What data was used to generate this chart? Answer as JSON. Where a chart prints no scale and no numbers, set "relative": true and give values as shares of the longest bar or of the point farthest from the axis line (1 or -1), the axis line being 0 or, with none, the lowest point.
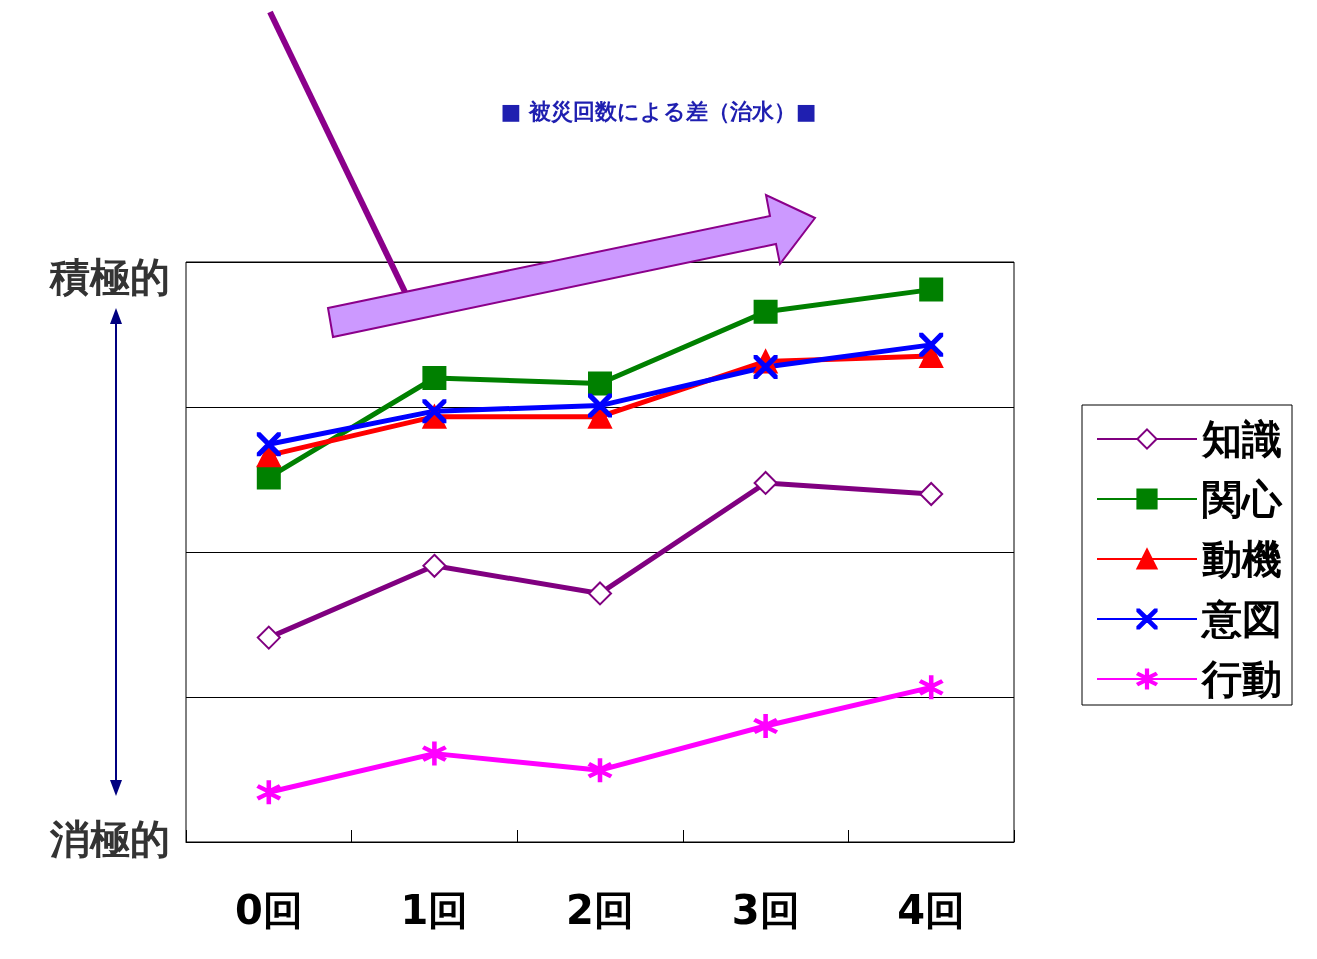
{
  "chart_data": {
    "type": "line",
    "title": "■ 被災回数による差（治水）■",
    "relative": true,
    "grid": "y",
    "legend": "right",
    "annotations": [
      "積極的",
      "消極的"
    ],
    "categories": [
      "0回",
      "1回",
      "2回",
      "3回",
      "4回"
    ],
    "series": [
      {
        "name": "知識",
        "color": "#800080",
        "marker": "diamond",
        "values": [
          0.37,
          0.5,
          0.45,
          0.65,
          0.63
        ]
      },
      {
        "name": "関心",
        "color": "#008000",
        "marker": "square",
        "values": [
          0.66,
          0.84,
          0.83,
          0.96,
          1
        ]
      },
      {
        "name": "動機",
        "color": "#ff0000",
        "marker": "triangle",
        "values": [
          0.7,
          0.77,
          0.77,
          0.87,
          0.88
        ]
      },
      {
        "name": "意図",
        "color": "#0000ff",
        "marker": "cross",
        "values": [
          0.72,
          0.78,
          0.79,
          0.86,
          0.9
        ]
      },
      {
        "name": "行動",
        "color": "#ff00ff",
        "marker": "star",
        "values": [
          0.09,
          0.16,
          0.13,
          0.21,
          0.28
        ]
      }
    ]
  }
}
